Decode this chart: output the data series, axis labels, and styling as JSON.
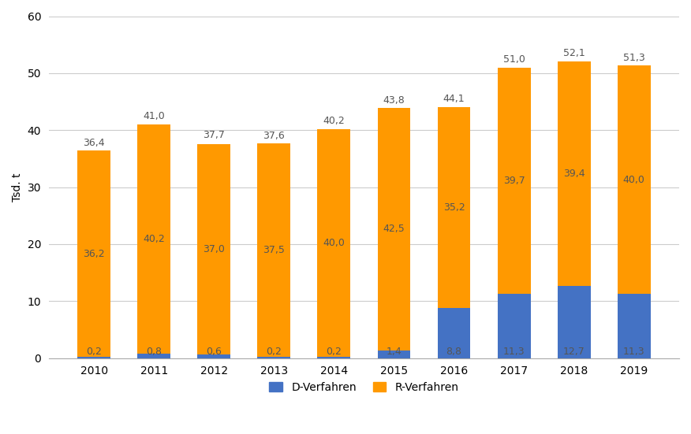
{
  "years": [
    "2010",
    "2011",
    "2012",
    "2013",
    "2014",
    "2015",
    "2016",
    "2017",
    "2018",
    "2019"
  ],
  "d_verfahren": [
    0.2,
    0.8,
    0.6,
    0.2,
    0.2,
    1.4,
    8.8,
    11.3,
    12.7,
    11.3
  ],
  "r_verfahren": [
    36.2,
    40.2,
    37.0,
    37.5,
    40.0,
    42.5,
    35.2,
    39.7,
    39.4,
    40.0
  ],
  "totals": [
    36.4,
    41.0,
    37.7,
    37.6,
    40.2,
    43.8,
    44.1,
    51.0,
    52.1,
    51.3
  ],
  "d_color": "#4472C4",
  "r_color": "#FF9900",
  "ylabel": "Tsd. t",
  "ylim": [
    0,
    60
  ],
  "yticks": [
    0,
    10,
    20,
    30,
    40,
    50,
    60
  ],
  "legend_d": "D-Verfahren",
  "legend_r": "R-Verfahren",
  "bg_color": "#FFFFFF",
  "plot_bg_color": "#FFFFFF",
  "bar_width": 0.55,
  "label_fontsize": 9,
  "axis_fontsize": 10
}
